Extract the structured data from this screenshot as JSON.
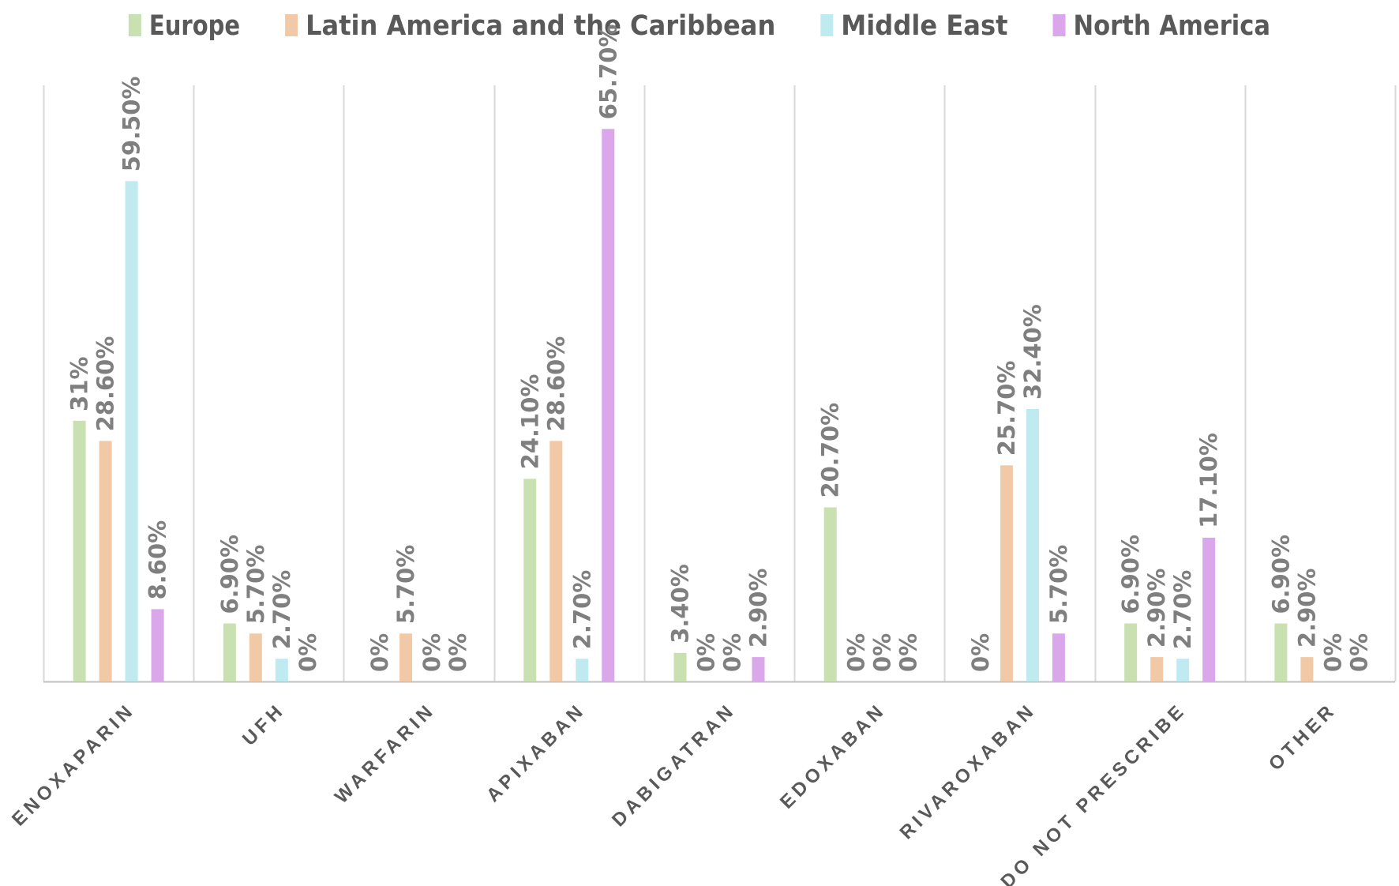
{
  "chart_data": {
    "type": "bar",
    "title": "",
    "xlabel": "",
    "ylabel": "",
    "ylim": [
      0,
      70
    ],
    "grid": false,
    "legend_position": "top",
    "categories": [
      "ENOXAPARIN",
      "UFH",
      "WARFARIN",
      "APIXABAN",
      "DABIGATRAN",
      "EDOXABAN",
      "RIVAROXABAN",
      "DO NOT PRESCRIBE",
      "OTHER"
    ],
    "series": [
      {
        "name": "Europe",
        "color": "#c9e0b1",
        "values": [
          31,
          6.9,
          0,
          24.1,
          3.4,
          20.7,
          0,
          6.9,
          6.9
        ],
        "labels": [
          "31%",
          "6.90%",
          "0%",
          "24.10%",
          "3.40%",
          "20.70%",
          "0%",
          "6.90%",
          "6.90%"
        ]
      },
      {
        "name": "Latin America and the Caribbean",
        "color": "#f1c9a7",
        "values": [
          28.6,
          5.7,
          5.7,
          28.6,
          0,
          0,
          25.7,
          2.9,
          2.9
        ],
        "labels": [
          "28.60%",
          "5.70%",
          "5.70%",
          "28.60%",
          "0%",
          "0%",
          "25.70%",
          "2.90%",
          "2.90%"
        ]
      },
      {
        "name": "Middle East",
        "color": "#bfeaef",
        "values": [
          59.5,
          2.7,
          0,
          2.7,
          0,
          0,
          32.4,
          2.7,
          0
        ],
        "labels": [
          "59.50%",
          "2.70%",
          "0%",
          "2.70%",
          "0%",
          "0%",
          "32.40%",
          "2.70%",
          "0%"
        ]
      },
      {
        "name": "North America",
        "color": "#d9a7ea",
        "values": [
          8.6,
          0,
          0,
          65.7,
          2.9,
          0,
          5.7,
          17.1,
          0
        ],
        "labels": [
          "8.60%",
          "0%",
          "0%",
          "65.70%",
          "2.90%",
          "0%",
          "5.70%",
          "17.10%",
          "0%"
        ]
      }
    ]
  }
}
